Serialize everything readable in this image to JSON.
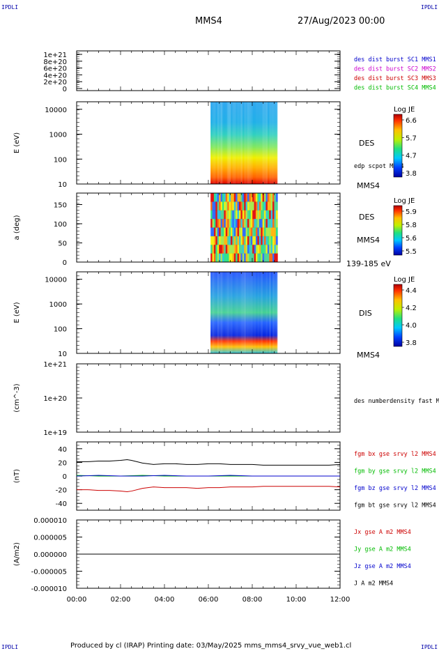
{
  "header": {
    "corner_tl": "IPDLI",
    "corner_tr": "IPDLI",
    "spacecraft": "MMS4",
    "datetime": "27/Aug/2023 00:00",
    "corner_bl": "IPDLI",
    "corner_br": "IPDLI"
  },
  "footer": {
    "text": "Produced by cl (IRAP)   Printing date: 03/May/2025   mms_mms4_srvy_vue_web1.cl"
  },
  "colors": {
    "mms1": "#0000cc",
    "mms2": "#cc00cc",
    "mms3": "#cc0000",
    "mms4": "#00bb00",
    "bx": "#cc0000",
    "by": "#00bb00",
    "bz": "#0000cc",
    "bt": "#000000"
  },
  "chart_data": [
    {
      "id": "panel1",
      "type": "line",
      "ylabel": "",
      "yticks": [
        "1e+21",
        "8e+20",
        "6e+20",
        "4e+20",
        "2e+20",
        "0"
      ],
      "ylim": [
        0,
        1e+21
      ],
      "legend": [
        {
          "name": "des dist burst SC1 MMS1",
          "color": "#0000cc"
        },
        {
          "name": "des dist burst SC2 MMS2",
          "color": "#cc00cc"
        },
        {
          "name": "des dist burst SC3 MMS3",
          "color": "#cc0000"
        },
        {
          "name": "des dist burst SC4 MMS4",
          "color": "#00bb00"
        }
      ],
      "series": [
        {
          "name": "dashed zero",
          "x": [
            0,
            12
          ],
          "y": [
            0,
            0
          ]
        }
      ]
    },
    {
      "id": "panel2",
      "type": "heatmap",
      "ylabel": "E (eV)",
      "yticks": [
        "10000",
        "1000",
        "100",
        "10"
      ],
      "yscale": "log",
      "ylim": [
        10,
        20000
      ],
      "x_range_hours": [
        6.1,
        9.15
      ],
      "right_label": "DES",
      "right_note": "edp scpot MMS4",
      "bottom_right": "MMS4",
      "colorbar": {
        "title": "Log JE",
        "ticks": [
          "6.6",
          "5.7",
          "4.7",
          "3.8"
        ]
      }
    },
    {
      "id": "panel3",
      "type": "heatmap",
      "ylabel": "a (deg)",
      "yticks": [
        "150",
        "100",
        "50",
        "0"
      ],
      "ylim": [
        0,
        180
      ],
      "x_range_hours": [
        6.1,
        9.15
      ],
      "right_label": "DES",
      "right_sub": "MMS4",
      "bottom_right": "139-185 eV",
      "colorbar": {
        "title": "Log JE",
        "ticks": [
          "5.9",
          "5.8",
          "5.6",
          "5.5"
        ]
      }
    },
    {
      "id": "panel4",
      "type": "heatmap",
      "ylabel": "E (eV)",
      "yticks": [
        "10000",
        "1000",
        "100",
        "10"
      ],
      "yscale": "log",
      "ylim": [
        10,
        20000
      ],
      "x_range_hours": [
        6.1,
        9.15
      ],
      "right_label": "DIS",
      "bottom_right": "MMS4",
      "colorbar": {
        "title": "Log JE",
        "ticks": [
          "4.4",
          "4.2",
          "4.0",
          "3.8"
        ]
      }
    },
    {
      "id": "panel5",
      "type": "line",
      "ylabel": "(cm^-3)",
      "yticks": [
        "1e+21",
        "1e+20",
        "1e+19"
      ],
      "yscale": "log",
      "ylim": [
        1e+19,
        1e+21
      ],
      "right_note": "des numberdensity fast M",
      "series": []
    },
    {
      "id": "panel6",
      "type": "line",
      "ylabel": "(nT)",
      "yticks": [
        "40",
        "20",
        "0",
        "-20",
        "-40"
      ],
      "ylim": [
        -50,
        50
      ],
      "legend": [
        {
          "name": "fgm bx gse srvy l2 MMS4",
          "color": "#cc0000"
        },
        {
          "name": "fgm by gse srvy l2 MMS4",
          "color": "#00bb00"
        },
        {
          "name": "fgm bz gse srvy l2 MMS4",
          "color": "#0000cc"
        },
        {
          "name": "fgm bt gse srvy l2 MMS4",
          "color": "#000000"
        }
      ],
      "series": [
        {
          "name": "bt",
          "color": "#000000",
          "x": [
            0,
            0.5,
            1,
            1.5,
            2,
            2.3,
            2.5,
            3,
            3.5,
            4,
            4.5,
            5,
            5.5,
            6,
            6.5,
            7,
            7.5,
            8,
            8.5,
            9,
            9.5,
            10,
            10.5,
            11,
            11.5,
            12
          ],
          "y": [
            21,
            21,
            22,
            22,
            23,
            24,
            23,
            19,
            17,
            18,
            18,
            17,
            17,
            18,
            18,
            17,
            17,
            17,
            16,
            16,
            16,
            16,
            16,
            16,
            16,
            17
          ]
        },
        {
          "name": "bx",
          "color": "#cc0000",
          "x": [
            0,
            0.5,
            1,
            1.5,
            2,
            2.3,
            2.5,
            3,
            3.5,
            4,
            4.5,
            5,
            5.5,
            6,
            6.5,
            7,
            7.5,
            8,
            8.5,
            9,
            9.5,
            10,
            10.5,
            11,
            11.5,
            12
          ],
          "y": [
            -20,
            -20,
            -21,
            -21,
            -22,
            -23,
            -22,
            -18,
            -16,
            -17,
            -17,
            -17,
            -18,
            -17,
            -17,
            -16,
            -16,
            -16,
            -15,
            -15,
            -15,
            -15,
            -15,
            -15,
            -15,
            -16
          ]
        },
        {
          "name": "by",
          "color": "#00bb00",
          "x": [
            0,
            1,
            2,
            3,
            4,
            5,
            6,
            7,
            8,
            9,
            10,
            11,
            12
          ],
          "y": [
            1,
            0,
            0,
            1,
            0,
            0,
            0,
            0,
            0,
            0,
            0,
            0,
            0
          ]
        },
        {
          "name": "bz",
          "color": "#0000cc",
          "x": [
            0,
            1,
            2,
            3,
            4,
            5,
            6,
            7,
            8,
            9,
            10,
            11,
            12
          ],
          "y": [
            0,
            1,
            0,
            0,
            1,
            0,
            0,
            1,
            0,
            0,
            0,
            0,
            0
          ]
        }
      ]
    },
    {
      "id": "panel7",
      "type": "line",
      "ylabel": "(A/m2)",
      "yticks": [
        "0.000010",
        "0.000005",
        "0.000000",
        "-0.000005",
        "-0.000010"
      ],
      "ylim": [
        -1e-05,
        1e-05
      ],
      "legend": [
        {
          "name": "Jx gse A m2 MMS4",
          "color": "#cc0000"
        },
        {
          "name": "Jy gse A m2 MMS4",
          "color": "#00bb00"
        },
        {
          "name": "Jz gse A m2 MMS4",
          "color": "#0000cc"
        },
        {
          "name": "J A m2 MMS4",
          "color": "#000000"
        }
      ],
      "series": [
        {
          "name": "J",
          "color": "#000000",
          "x": [
            0,
            12
          ],
          "y": [
            0,
            0
          ]
        }
      ]
    }
  ],
  "xaxis": {
    "ticks": [
      "00:00",
      "02:00",
      "04:00",
      "06:00",
      "08:00",
      "10:00",
      "12:00"
    ],
    "range_hours": [
      0,
      12
    ]
  }
}
